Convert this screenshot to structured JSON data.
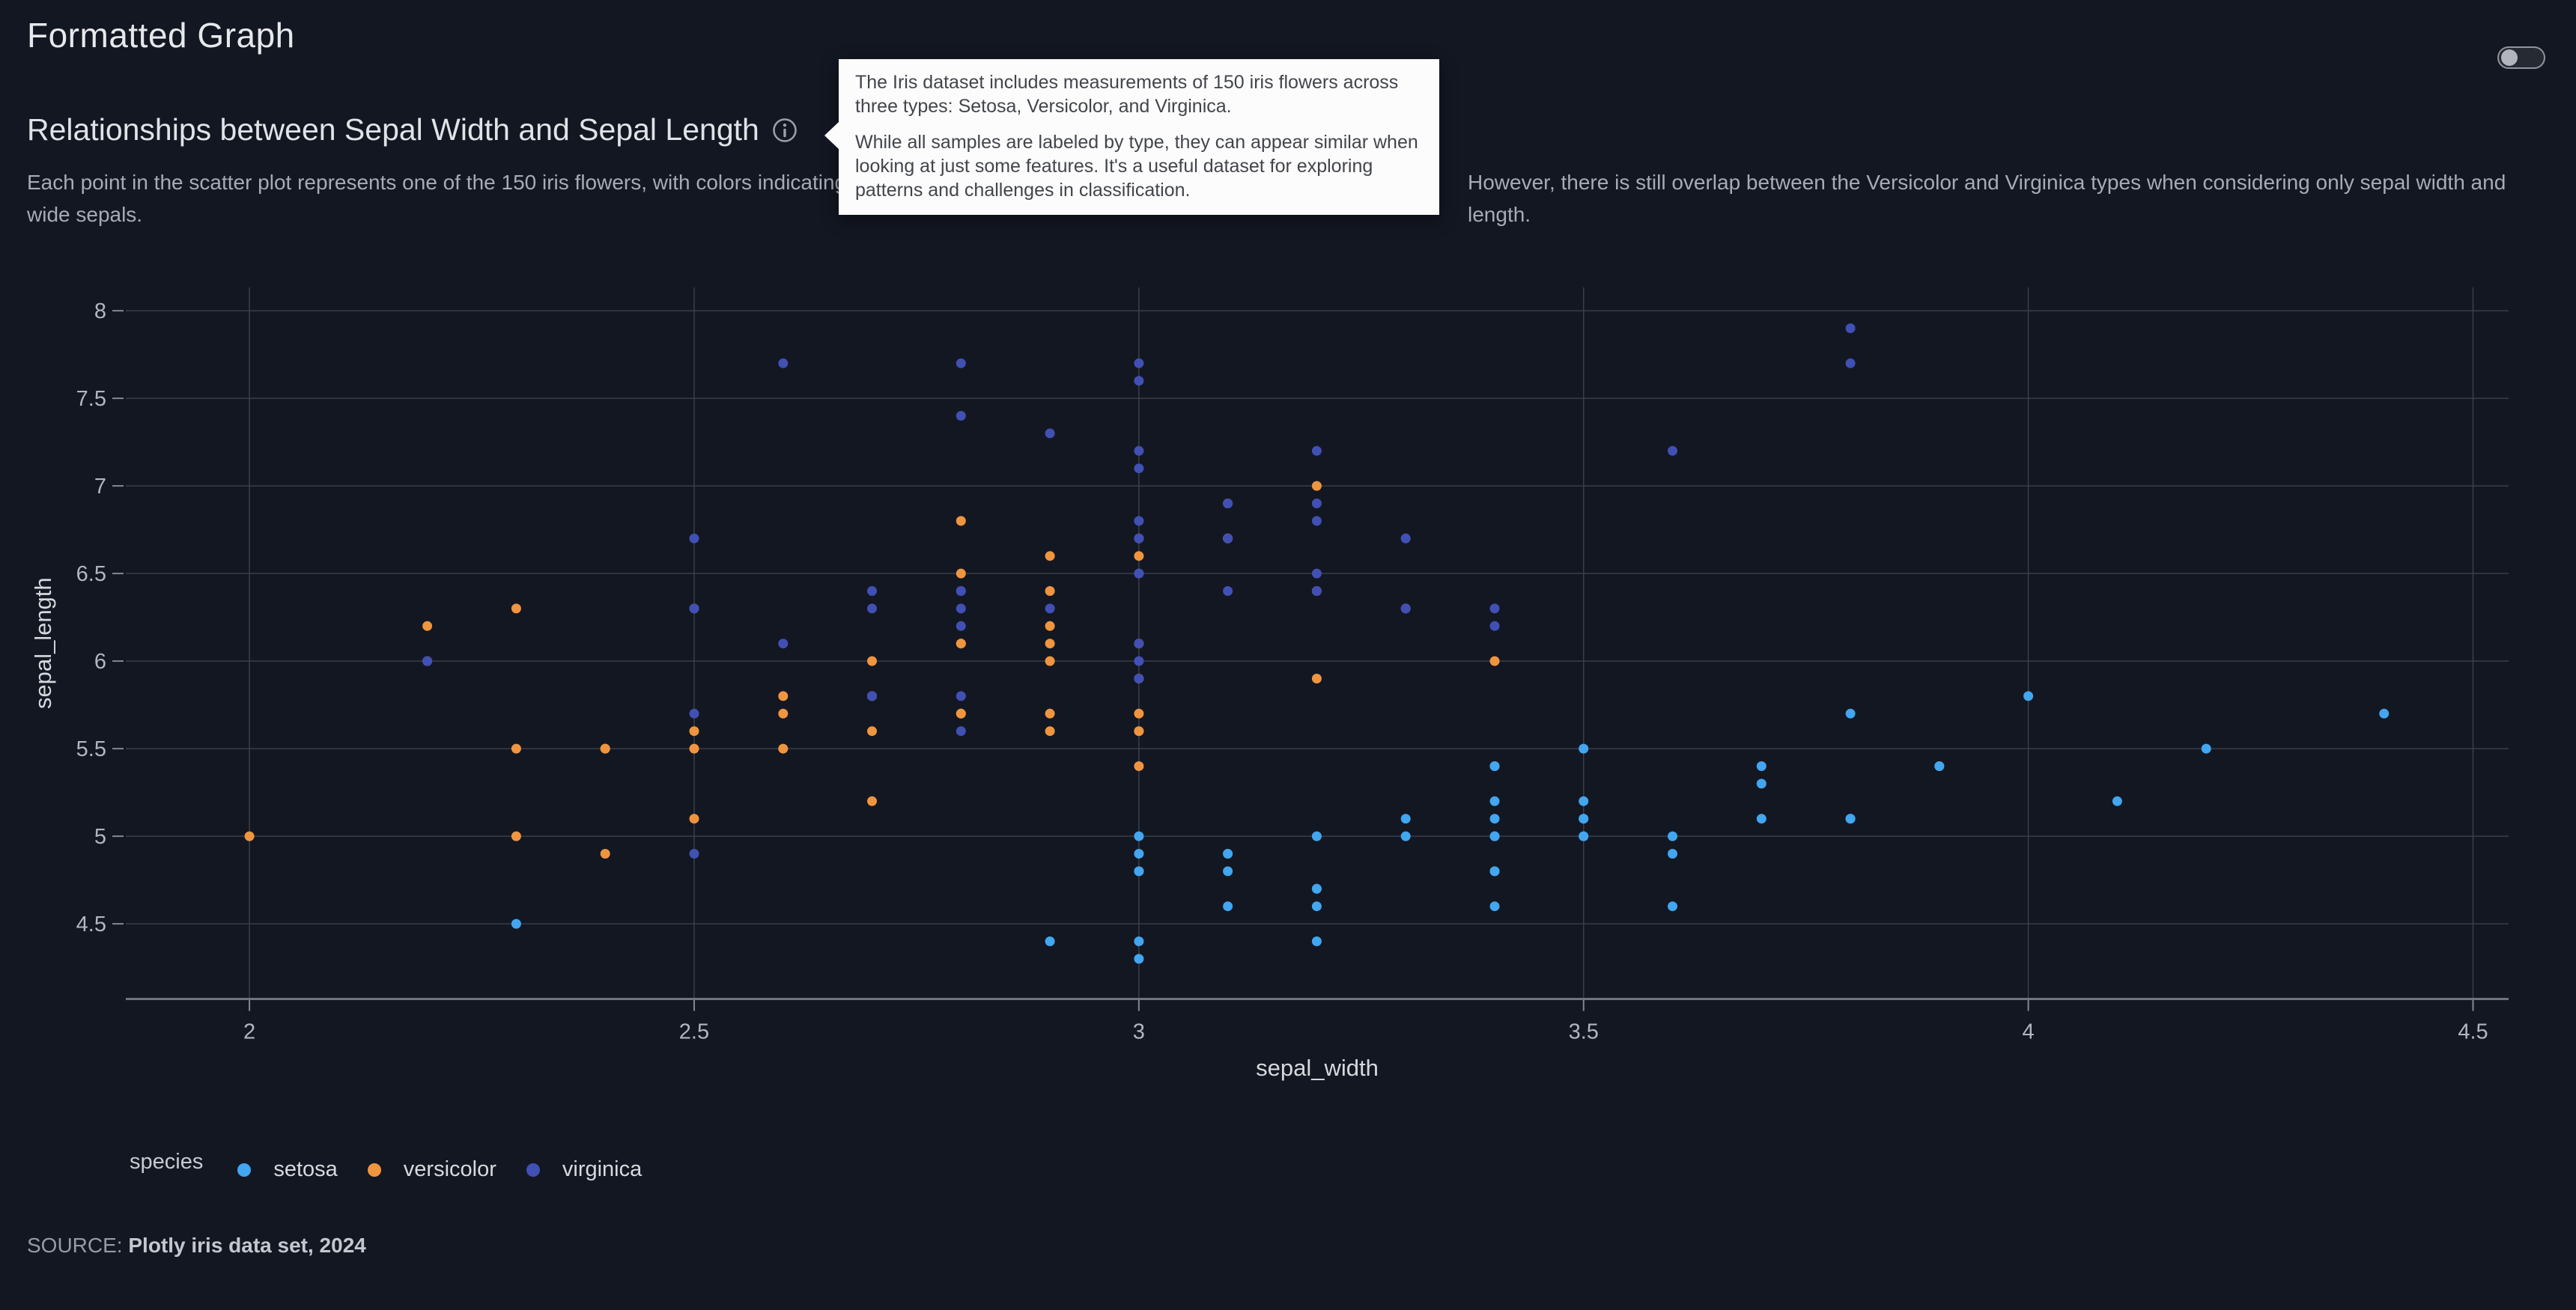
{
  "header": {
    "title": "Formatted Graph",
    "subtitle": "Relationships between Sepal Width and Sepal Length",
    "description_left": "Each point in the scatter plot represents one of the 150 iris flowers, with colors indicating the species. Setosa is easily distinguished by its short and wide sepals.",
    "description_right": "However, there is still overlap between the Versicolor and Virginica types when considering only sepal width and length."
  },
  "toggle": {
    "state": "off"
  },
  "tooltip": {
    "paragraph1": "The Iris dataset includes measurements of 150 iris flowers across three types: Setosa, Versicolor, and Virginica.",
    "paragraph2": "While all samples are labeled by type, they can appear similar when looking at just some features. It's a useful dataset for exploring patterns and challenges in classification."
  },
  "legend": {
    "title": "species",
    "items": [
      {
        "label": "setosa",
        "color": "#42a6f0"
      },
      {
        "label": "versicolor",
        "color": "#f0953f"
      },
      {
        "label": "virginica",
        "color": "#4150b4"
      }
    ]
  },
  "source": {
    "label": "SOURCE:",
    "value": "Plotly iris data set, 2024"
  },
  "theme": {
    "background": "#131722",
    "grid": "#3a3e49",
    "axis_line": "#71747e",
    "tick": "#84878f",
    "tick_label": "#b3b6be",
    "axis_title": "#d6d8dd",
    "tooltip_bg": "#fcfcfc"
  },
  "chart_data": {
    "type": "scatter",
    "title": "",
    "xlabel": "sepal_width",
    "ylabel": "sepal_length",
    "legend_title": "species",
    "legend_position": "bottom",
    "grid": true,
    "xlim": [
      1.861,
      4.54
    ],
    "ylim": [
      4.071,
      8.133
    ],
    "x_ticks": [
      2,
      2.5,
      3,
      3.5,
      4,
      4.5
    ],
    "x_tick_labels": [
      "2",
      "2.5",
      "3",
      "3.5",
      "4",
      "4.5"
    ],
    "y_ticks": [
      4.5,
      5,
      5.5,
      6,
      6.5,
      7,
      7.5,
      8
    ],
    "y_tick_labels": [
      "4.5",
      "5",
      "5.5",
      "6",
      "6.5",
      "7",
      "7.5",
      "8"
    ],
    "series": [
      {
        "name": "setosa",
        "color": "#42a6f0",
        "points": [
          [
            3.5,
            5.1
          ],
          [
            3.0,
            4.9
          ],
          [
            3.2,
            4.7
          ],
          [
            3.1,
            4.6
          ],
          [
            3.6,
            5.0
          ],
          [
            3.9,
            5.4
          ],
          [
            3.4,
            4.6
          ],
          [
            3.4,
            5.0
          ],
          [
            2.9,
            4.4
          ],
          [
            3.1,
            4.9
          ],
          [
            3.7,
            5.4
          ],
          [
            3.4,
            4.8
          ],
          [
            3.0,
            4.8
          ],
          [
            3.0,
            4.3
          ],
          [
            4.0,
            5.8
          ],
          [
            4.4,
            5.7
          ],
          [
            3.9,
            5.4
          ],
          [
            3.5,
            5.1
          ],
          [
            3.8,
            5.7
          ],
          [
            3.8,
            5.1
          ],
          [
            3.4,
            5.4
          ],
          [
            3.7,
            5.1
          ],
          [
            3.6,
            4.6
          ],
          [
            3.3,
            5.1
          ],
          [
            3.4,
            4.8
          ],
          [
            3.0,
            5.0
          ],
          [
            3.4,
            5.0
          ],
          [
            3.5,
            5.2
          ],
          [
            3.4,
            5.2
          ],
          [
            3.2,
            4.7
          ],
          [
            3.1,
            4.8
          ],
          [
            3.4,
            5.4
          ],
          [
            4.1,
            5.2
          ],
          [
            4.2,
            5.5
          ],
          [
            3.1,
            4.9
          ],
          [
            3.2,
            5.0
          ],
          [
            3.5,
            5.5
          ],
          [
            3.6,
            4.9
          ],
          [
            3.0,
            4.4
          ],
          [
            3.4,
            5.1
          ],
          [
            3.5,
            5.0
          ],
          [
            2.3,
            4.5
          ],
          [
            3.2,
            4.4
          ],
          [
            3.5,
            5.0
          ],
          [
            3.8,
            5.1
          ],
          [
            3.0,
            4.8
          ],
          [
            3.8,
            5.1
          ],
          [
            3.2,
            4.6
          ],
          [
            3.7,
            5.3
          ],
          [
            3.3,
            5.0
          ]
        ]
      },
      {
        "name": "versicolor",
        "color": "#f0953f",
        "points": [
          [
            3.2,
            7.0
          ],
          [
            3.2,
            6.4
          ],
          [
            3.1,
            6.9
          ],
          [
            2.3,
            5.5
          ],
          [
            2.8,
            6.5
          ],
          [
            2.8,
            5.7
          ],
          [
            3.3,
            6.3
          ],
          [
            2.4,
            4.9
          ],
          [
            2.9,
            6.6
          ],
          [
            2.7,
            5.2
          ],
          [
            2.0,
            5.0
          ],
          [
            3.0,
            5.9
          ],
          [
            2.2,
            6.0
          ],
          [
            2.9,
            6.1
          ],
          [
            2.9,
            5.6
          ],
          [
            3.1,
            6.7
          ],
          [
            3.0,
            5.6
          ],
          [
            2.7,
            5.8
          ],
          [
            2.2,
            6.2
          ],
          [
            2.5,
            5.6
          ],
          [
            3.2,
            5.9
          ],
          [
            2.8,
            6.1
          ],
          [
            2.5,
            6.3
          ],
          [
            2.8,
            6.1
          ],
          [
            2.9,
            6.4
          ],
          [
            3.0,
            6.6
          ],
          [
            2.8,
            6.8
          ],
          [
            3.0,
            6.7
          ],
          [
            2.9,
            6.0
          ],
          [
            2.6,
            5.7
          ],
          [
            2.4,
            5.5
          ],
          [
            2.4,
            5.5
          ],
          [
            2.7,
            5.8
          ],
          [
            2.7,
            6.0
          ],
          [
            3.0,
            5.4
          ],
          [
            3.4,
            6.0
          ],
          [
            3.1,
            6.7
          ],
          [
            2.3,
            6.3
          ],
          [
            3.0,
            5.6
          ],
          [
            2.5,
            5.5
          ],
          [
            2.6,
            5.5
          ],
          [
            3.0,
            6.1
          ],
          [
            2.6,
            5.8
          ],
          [
            2.3,
            5.0
          ],
          [
            2.7,
            5.6
          ],
          [
            3.0,
            5.7
          ],
          [
            2.9,
            5.7
          ],
          [
            2.9,
            6.2
          ],
          [
            2.5,
            5.1
          ],
          [
            2.8,
            5.7
          ]
        ]
      },
      {
        "name": "virginica",
        "color": "#4150b4",
        "points": [
          [
            3.3,
            6.3
          ],
          [
            2.7,
            5.8
          ],
          [
            3.0,
            7.1
          ],
          [
            2.9,
            6.3
          ],
          [
            3.0,
            6.5
          ],
          [
            3.0,
            7.6
          ],
          [
            2.5,
            4.9
          ],
          [
            2.9,
            7.3
          ],
          [
            2.5,
            6.7
          ],
          [
            3.6,
            7.2
          ],
          [
            3.2,
            6.5
          ],
          [
            2.7,
            6.4
          ],
          [
            3.0,
            6.8
          ],
          [
            2.5,
            5.7
          ],
          [
            2.8,
            5.8
          ],
          [
            3.2,
            6.4
          ],
          [
            3.0,
            6.5
          ],
          [
            3.8,
            7.7
          ],
          [
            2.6,
            7.7
          ],
          [
            2.2,
            6.0
          ],
          [
            3.2,
            6.9
          ],
          [
            2.8,
            5.6
          ],
          [
            2.8,
            7.7
          ],
          [
            2.7,
            6.3
          ],
          [
            3.3,
            6.7
          ],
          [
            3.2,
            7.2
          ],
          [
            2.8,
            6.2
          ],
          [
            3.0,
            6.1
          ],
          [
            2.8,
            6.4
          ],
          [
            3.0,
            7.2
          ],
          [
            2.8,
            7.4
          ],
          [
            3.8,
            7.9
          ],
          [
            2.8,
            6.4
          ],
          [
            2.8,
            6.3
          ],
          [
            2.6,
            6.1
          ],
          [
            3.0,
            7.7
          ],
          [
            3.4,
            6.3
          ],
          [
            3.1,
            6.4
          ],
          [
            3.0,
            6.0
          ],
          [
            3.1,
            6.9
          ],
          [
            3.1,
            6.7
          ],
          [
            3.1,
            6.9
          ],
          [
            2.7,
            5.8
          ],
          [
            3.2,
            6.8
          ],
          [
            3.3,
            6.7
          ],
          [
            3.0,
            6.7
          ],
          [
            2.5,
            6.3
          ],
          [
            3.0,
            6.5
          ],
          [
            3.4,
            6.2
          ],
          [
            3.0,
            5.9
          ]
        ]
      }
    ]
  }
}
